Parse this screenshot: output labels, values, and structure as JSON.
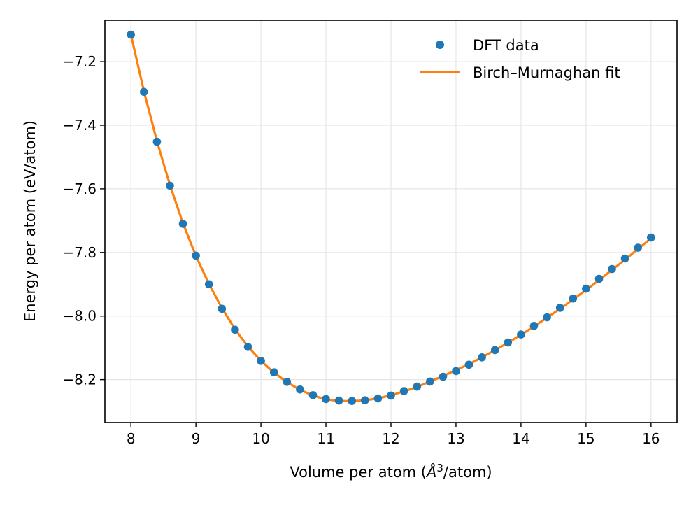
{
  "chart_data": {
    "type": "line",
    "title": "",
    "xlabel_prefix": "Volume per atom (",
    "xlabel_unit": "Å",
    "xlabel_sup": "3",
    "xlabel_suffix": "/atom)",
    "ylabel": "Energy per atom (eV/atom)",
    "xlim": [
      7.6,
      16.4
    ],
    "ylim": [
      -8.335,
      -7.07
    ],
    "xticks": [
      8,
      9,
      10,
      11,
      12,
      13,
      14,
      15,
      16
    ],
    "xtick_labels": [
      "8",
      "9",
      "10",
      "11",
      "12",
      "13",
      "14",
      "15",
      "16"
    ],
    "yticks": [
      -7.2,
      -7.4,
      -7.6,
      -7.8,
      -8.0,
      -8.2
    ],
    "ytick_labels": [
      "−7.2",
      "−7.4",
      "−7.6",
      "−7.8",
      "−8.0",
      "−8.2"
    ],
    "grid": true,
    "legend_position": "top-right",
    "series": [
      {
        "name": "DFT data",
        "kind": "scatter",
        "color": "#1f77b4",
        "x": [
          8.0,
          8.2,
          8.4,
          8.6,
          8.8,
          9.0,
          9.2,
          9.4,
          9.6,
          9.8,
          10.0,
          10.2,
          10.4,
          10.6,
          10.8,
          11.0,
          11.2,
          11.4,
          11.6,
          11.8,
          12.0,
          12.2,
          12.4,
          12.6,
          12.8,
          13.0,
          13.2,
          13.4,
          13.6,
          13.8,
          14.0,
          14.2,
          14.4,
          14.6,
          14.8,
          15.0,
          15.2,
          15.4,
          15.6,
          15.8,
          16.0
        ],
        "y": [
          -7.115,
          -7.295,
          -7.452,
          -7.59,
          -7.71,
          -7.81,
          -7.9,
          -7.977,
          -8.043,
          -8.097,
          -8.141,
          -8.177,
          -8.207,
          -8.231,
          -8.249,
          -8.261,
          -8.266,
          -8.267,
          -8.265,
          -8.259,
          -8.25,
          -8.236,
          -8.222,
          -8.206,
          -8.191,
          -8.173,
          -8.153,
          -8.13,
          -8.107,
          -8.083,
          -8.058,
          -8.031,
          -8.004,
          -7.974,
          -7.945,
          -7.914,
          -7.883,
          -7.852,
          -7.819,
          -7.785,
          -7.753
        ]
      },
      {
        "name": "Birch–Murnaghan fit",
        "kind": "line",
        "color": "#ff7f0e",
        "x": [
          8.0,
          8.2,
          8.4,
          8.6,
          8.8,
          9.0,
          9.2,
          9.4,
          9.6,
          9.8,
          10.0,
          10.2,
          10.4,
          10.6,
          10.8,
          11.0,
          11.2,
          11.4,
          11.6,
          11.8,
          12.0,
          12.2,
          12.4,
          12.6,
          12.8,
          13.0,
          13.2,
          13.4,
          13.6,
          13.8,
          14.0,
          14.2,
          14.4,
          14.6,
          14.8,
          15.0,
          15.2,
          15.4,
          15.6,
          15.8,
          16.0
        ],
        "y": [
          -7.115,
          -7.293,
          -7.45,
          -7.588,
          -7.708,
          -7.811,
          -7.899,
          -7.975,
          -8.041,
          -8.096,
          -8.141,
          -8.178,
          -8.208,
          -8.232,
          -8.25,
          -8.262,
          -8.267,
          -8.268,
          -8.265,
          -8.259,
          -8.249,
          -8.237,
          -8.223,
          -8.206,
          -8.189,
          -8.17,
          -8.151,
          -8.13,
          -8.107,
          -8.084,
          -8.059,
          -8.033,
          -8.005,
          -7.977,
          -7.948,
          -7.918,
          -7.887,
          -7.855,
          -7.823,
          -7.789,
          -7.756
        ]
      }
    ]
  }
}
